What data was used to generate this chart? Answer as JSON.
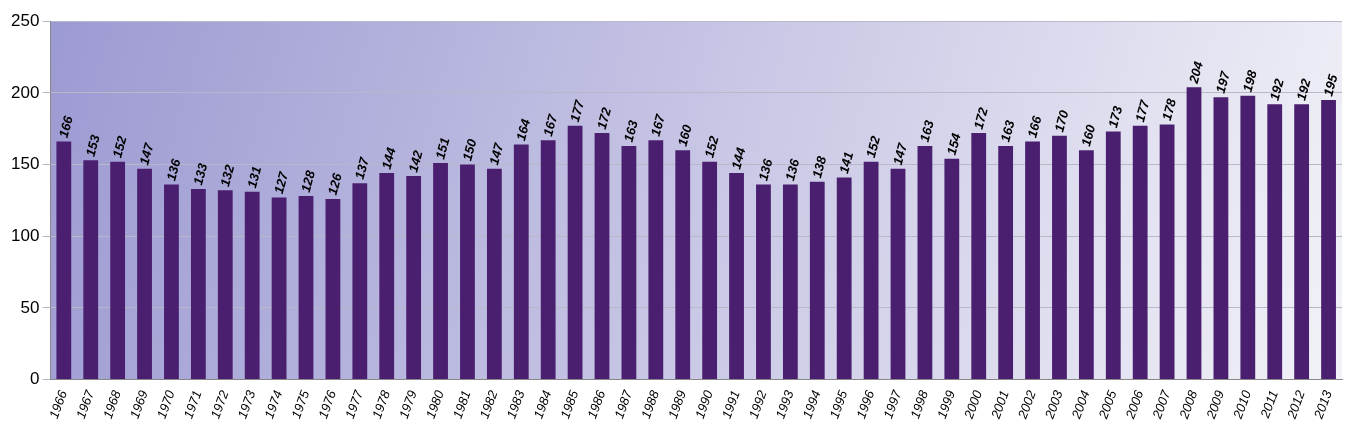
{
  "chart_data": {
    "type": "bar",
    "categories": [
      "1966",
      "1967",
      "1968",
      "1969",
      "1970",
      "1971",
      "1972",
      "1973",
      "1974",
      "1975",
      "1976",
      "1977",
      "1978",
      "1979",
      "1980",
      "1981",
      "1982",
      "1983",
      "1984",
      "1985",
      "1986",
      "1987",
      "1988",
      "1989",
      "1990",
      "1991",
      "1992",
      "1993",
      "1994",
      "1995",
      "1996",
      "1997",
      "1998",
      "1999",
      "2000",
      "2001",
      "2002",
      "2003",
      "2004",
      "2005",
      "2006",
      "2007",
      "2008",
      "2009",
      "2010",
      "2011",
      "2012",
      "2013"
    ],
    "values": [
      166,
      153,
      152,
      147,
      136,
      133,
      132,
      131,
      127,
      128,
      126,
      137,
      144,
      142,
      151,
      150,
      147,
      164,
      167,
      177,
      172,
      163,
      167,
      160,
      152,
      144,
      136,
      136,
      138,
      141,
      152,
      147,
      163,
      154,
      172,
      163,
      166,
      170,
      160,
      173,
      177,
      178,
      204,
      197,
      198,
      192,
      192,
      195
    ],
    "color": "#4b1f6f",
    "ylim": [
      0,
      250
    ],
    "yticks": [
      0,
      50,
      100,
      150,
      200,
      250
    ],
    "grid": "y",
    "legend": false,
    "data_labels": true
  }
}
